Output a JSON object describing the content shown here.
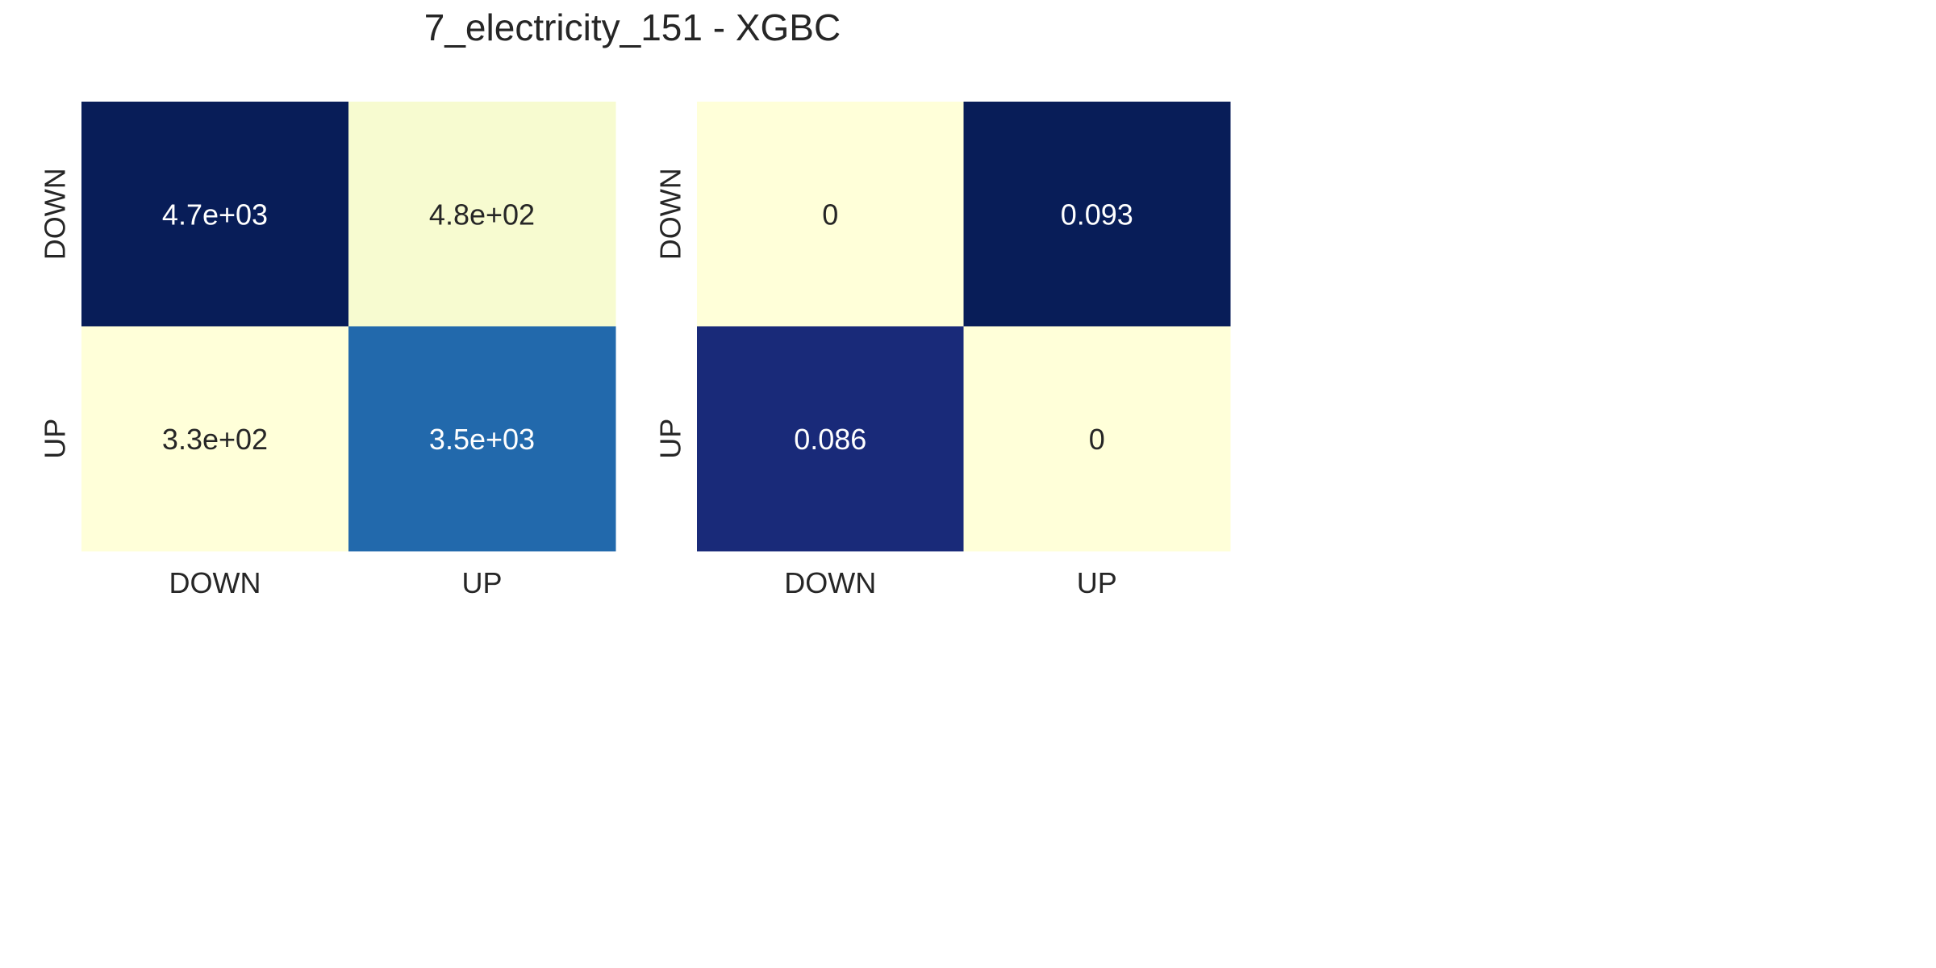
{
  "figure_title": "7_electricity_151 - XGBC",
  "chart_data": [
    {
      "type": "heatmap",
      "title": "",
      "xlabel": "",
      "ylabel": "",
      "x_categories": [
        "DOWN",
        "UP"
      ],
      "y_categories": [
        "DOWN",
        "UP"
      ],
      "values": [
        [
          4700,
          480
        ],
        [
          330,
          3500
        ]
      ],
      "cell_labels": [
        [
          "4.7e+03",
          "4.8e+02"
        ],
        [
          "3.3e+02",
          "3.5e+03"
        ]
      ],
      "colormap": "YlGnBu",
      "colors": [
        [
          "#081d58",
          "#f7fbd0"
        ],
        [
          "#ffffd9",
          "#2269ac"
        ]
      ],
      "text_colors": [
        [
          "#ffffff",
          "#262626"
        ],
        [
          "#262626",
          "#ffffff"
        ]
      ],
      "colorbar": false
    },
    {
      "type": "heatmap",
      "title": "",
      "xlabel": "",
      "ylabel": "",
      "x_categories": [
        "DOWN",
        "UP"
      ],
      "y_categories": [
        "DOWN",
        "UP"
      ],
      "values": [
        [
          0,
          0.093
        ],
        [
          0.086,
          0
        ]
      ],
      "cell_labels": [
        [
          "0",
          "0.093"
        ],
        [
          "0.086",
          "0"
        ]
      ],
      "colormap": "YlGnBu",
      "colors": [
        [
          "#ffffd9",
          "#081d58"
        ],
        [
          "#192a79",
          "#ffffd9"
        ]
      ],
      "text_colors": [
        [
          "#262626",
          "#ffffff"
        ],
        [
          "#ffffff",
          "#262626"
        ]
      ],
      "colorbar": false
    }
  ]
}
